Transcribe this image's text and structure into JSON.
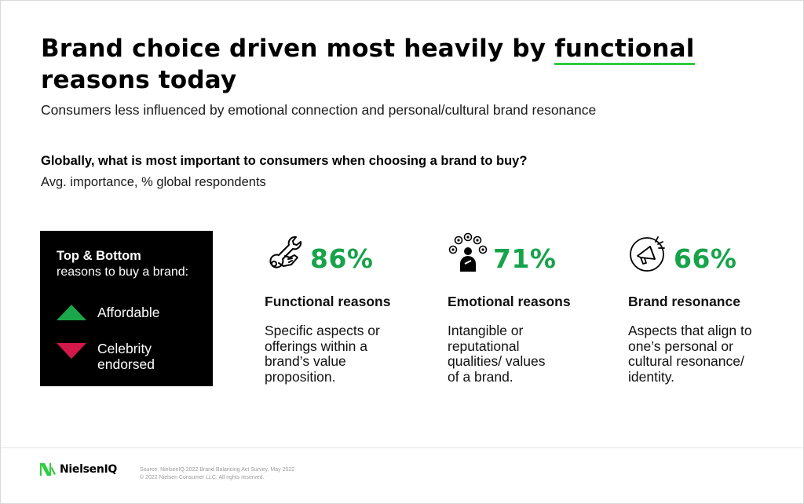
{
  "header": {
    "title_part1": "Brand choice driven most heavily by ",
    "title_highlight": "functional",
    "title_part2": "reasons today",
    "subtitle": "Consumers less influenced by emotional connection and personal/cultural brand resonance",
    "question": "Globally, what is most important to consumers when choosing a brand to buy?",
    "question_sub": "Avg. importance, % global respondents",
    "accent_color": "#2ecc40"
  },
  "legend": {
    "title": "Top & Bottom",
    "subtitle": "reasons to buy a brand:",
    "items": [
      {
        "label": "Affordable",
        "direction": "up",
        "color": "#1aa64a",
        "icon": "triangle-up-icon"
      },
      {
        "label_line1": "Celebrity",
        "label_line2": "endorsed",
        "direction": "down",
        "color": "#d4184a",
        "icon": "triangle-down-icon"
      }
    ]
  },
  "reasons": [
    {
      "icon": "wrench-hand-icon",
      "percent": "86%",
      "heading": "Functional reasons",
      "desc_lines": [
        "Specific aspects or",
        "offerings within a",
        "brand’s value",
        "proposition."
      ]
    },
    {
      "icon": "person-emotions-icon",
      "percent": "71%",
      "heading": "Emotional reasons",
      "desc_lines": [
        "Intangible or",
        "reputational",
        "qualities/ values",
        "of a brand."
      ]
    },
    {
      "icon": "megaphone-icon",
      "percent": "66%",
      "heading": "Brand resonance",
      "desc_lines": [
        "Aspects that align to",
        "one’s personal or",
        "cultural resonance/",
        "identity."
      ]
    }
  ],
  "percent_color": "#17a34a",
  "footer": {
    "brand": "NielsenIQ",
    "source_line1": "Source: NielsenIQ 2022 Brand Balancing Act Survey, May 2022",
    "source_line2": "© 2022 Nielsen Consumer LLC. All rights reserved.",
    "logo_color": "#2ecc40"
  }
}
